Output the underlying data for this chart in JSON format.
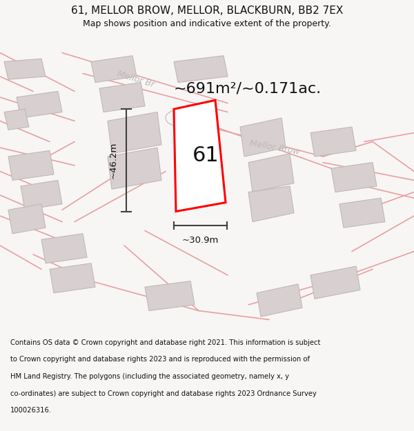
{
  "title_line1": "61, MELLOR BROW, MELLOR, BLACKBURN, BB2 7EX",
  "title_line2": "Map shows position and indicative extent of the property.",
  "area_text": "~691m²/~0.171ac.",
  "label_number": "61",
  "dim_width": "~30.9m",
  "dim_height": "~46.2m",
  "street_label1": "Mellor Br",
  "street_label2": "Mellor Brow",
  "footer_text_lines": [
    "Contains OS data © Crown copyright and database right 2021. This information is subject",
    "to Crown copyright and database rights 2023 and is reproduced with the permission of",
    "HM Land Registry. The polygons (including the associated geometry, namely x, y",
    "co-ordinates) are subject to Crown copyright and database rights 2023 Ordnance Survey",
    "100026316."
  ],
  "bg_color": "#f8f5f5",
  "road_color": "#e8a0a0",
  "building_fill": "#d8d0d0",
  "building_edge": "#c0b8b8",
  "plot_outline_color": "#ff0000",
  "dim_line_color": "#404040",
  "street_text_color": "#c0b8b8",
  "title_color": "#111111",
  "footer_color": "#111111"
}
